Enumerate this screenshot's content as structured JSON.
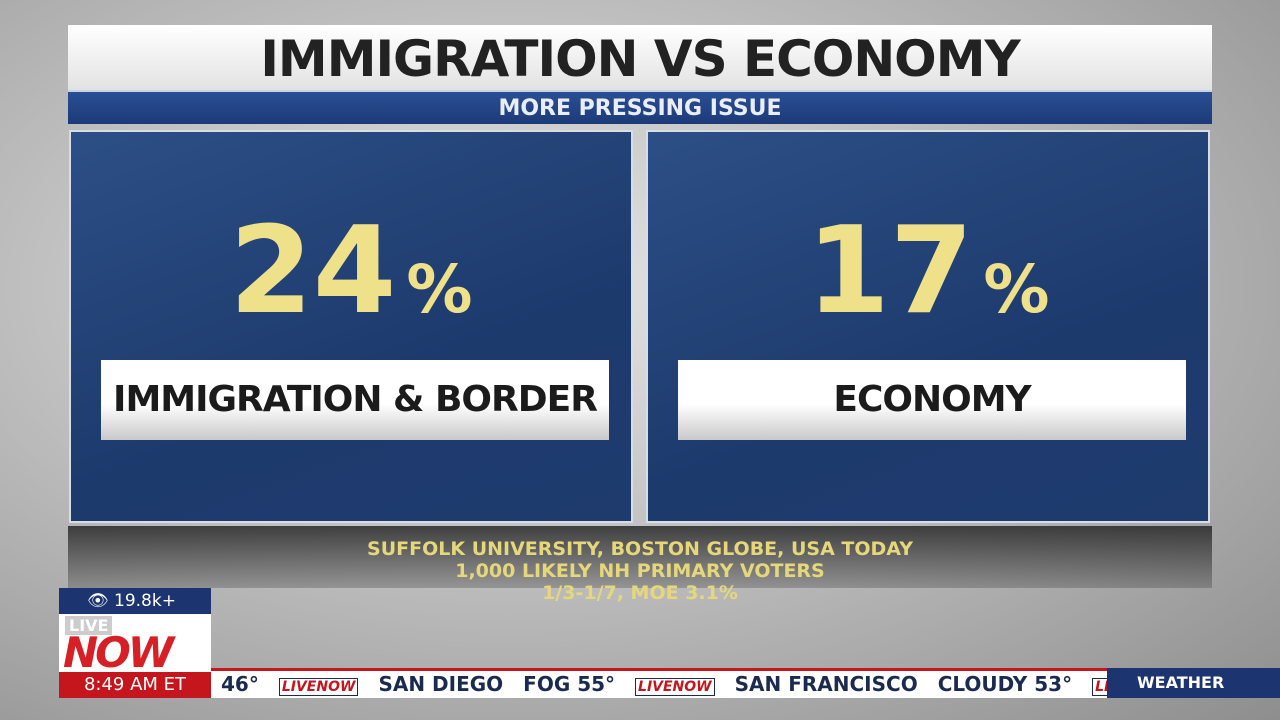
{
  "header": {
    "title": "IMMIGRATION VS ECONOMY",
    "subtitle": "MORE PRESSING ISSUE"
  },
  "panels": [
    {
      "number": "24",
      "unit": "%",
      "label": "IMMIGRATION & BORDER"
    },
    {
      "number": "17",
      "unit": "%",
      "label": "ECONOMY"
    }
  ],
  "source": [
    "SUFFOLK UNIVERSITY, BOSTON GLOBE, USA TODAY",
    "1,000 LIKELY NH PRIMARY VOTERS",
    "1/3-1/7, MOE 3.1%"
  ],
  "overlay": {
    "viewers": "19.8k+",
    "logo_top": "LIVE",
    "logo_bottom": "NOW",
    "time": "8:49 AM ET"
  },
  "ticker": {
    "items": [
      "46°",
      "LIVENOW",
      "SAN DIEGO",
      "FOG 55°",
      "LIVENOW",
      "SAN FRANCISCO",
      "CLOUDY 53°",
      "LIV"
    ],
    "section": "WEATHER"
  }
}
